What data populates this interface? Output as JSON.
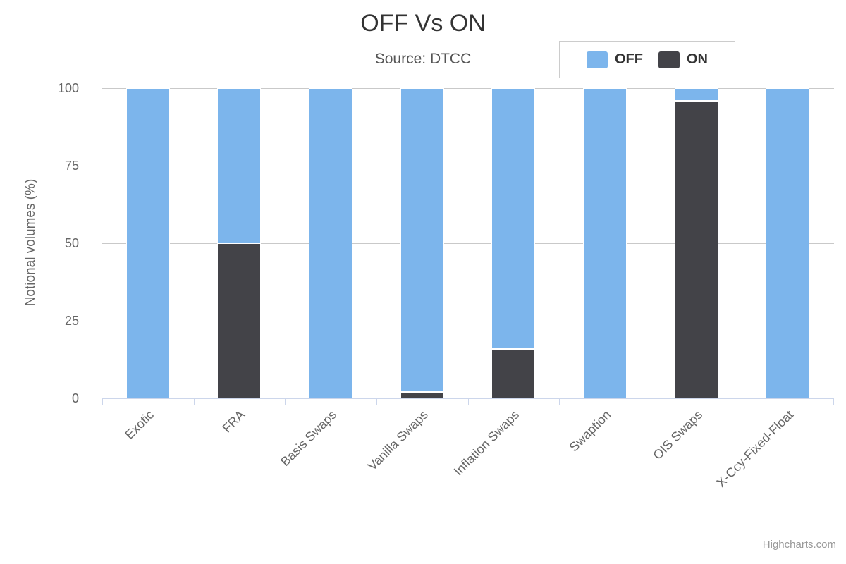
{
  "header": {
    "title": "OFF Vs ON",
    "subtitle": "Source: DTCC"
  },
  "legend": {
    "items": [
      {
        "label": "OFF",
        "color": "#7cb5ec"
      },
      {
        "label": "ON",
        "color": "#434348"
      }
    ]
  },
  "credit": {
    "label": "Highcharts.com"
  },
  "colors": {
    "off_series": "#7cb5ec",
    "on_series": "#434348",
    "gridline": "#c9c9c9",
    "axis_line": "#ccd6eb",
    "title_text": "#333333",
    "subtitle_text": "#555555",
    "axis_text": "#666666",
    "legend_border": "#cccccc",
    "credit_text": "#999999"
  },
  "chart_data": {
    "type": "bar",
    "stacked": true,
    "title": "OFF Vs ON",
    "subtitle": "Source: DTCC",
    "xlabel": "",
    "ylabel": "Notional volumes (%)",
    "ylim": [
      0,
      100
    ],
    "yticks": [
      0,
      25,
      50,
      75,
      100
    ],
    "grid": true,
    "legend_position": "top-right",
    "categories": [
      "Exotic",
      "FRA",
      "Basis Swaps",
      "Vanilla Swaps",
      "Inflation Swaps",
      "Swaption",
      "OIS Swaps",
      "X-Ccy-Fixed-Float"
    ],
    "series": [
      {
        "name": "OFF",
        "color": "#7cb5ec",
        "values": [
          100,
          50,
          100,
          98,
          84,
          100,
          4,
          100
        ]
      },
      {
        "name": "ON",
        "color": "#434348",
        "values": [
          0,
          50,
          0,
          2,
          16,
          0,
          96,
          0
        ]
      }
    ]
  }
}
